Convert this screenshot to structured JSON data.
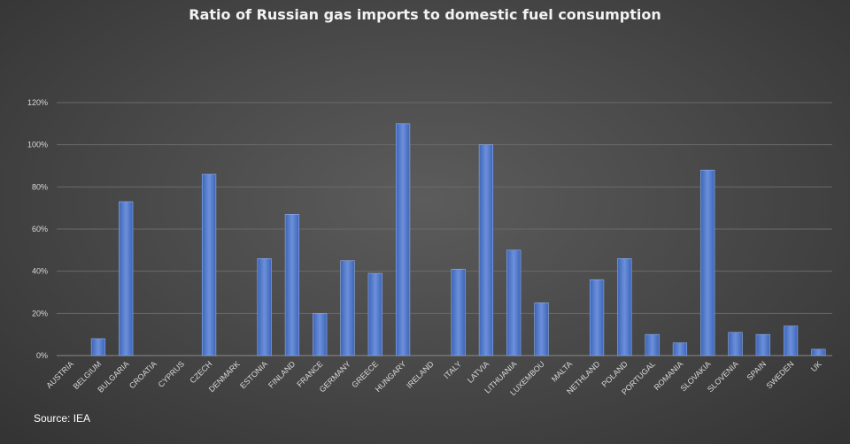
{
  "chart_data": {
    "type": "bar",
    "title": "Ratio of Russian gas imports to domestic fuel consumption",
    "source": "Source: IEA",
    "categories": [
      "AUSTRIA",
      "BELGIUM",
      "BULGARIA",
      "CROATIA",
      "CYPRUS",
      "CZECH",
      "DENMARK",
      "ESTONIA",
      "FINLAND",
      "FRANCE",
      "GERMANY",
      "GREECE",
      "HUNGARY",
      "IRELAND",
      "ITALY",
      "LATVIA",
      "LITHUANIA",
      "LUXEMBOU",
      "MALTA",
      "NETHLAND",
      "POLAND",
      "PORTUGAL",
      "ROMANIA",
      "SLOVAKIA",
      "SLOVENIA",
      "SPAIN",
      "SWEDEN",
      "UK"
    ],
    "values": [
      0,
      8,
      73,
      0,
      0,
      86,
      0,
      46,
      67,
      20,
      45,
      39,
      110,
      0,
      41,
      100,
      50,
      25,
      0,
      36,
      46,
      10,
      6,
      88,
      11,
      10,
      14,
      3
    ],
    "y_ticks": [
      "0%",
      "20%",
      "40%",
      "60%",
      "80%",
      "100%",
      "120%"
    ],
    "ylim": [
      0,
      120
    ],
    "grid": true,
    "colors": {
      "bar": "#4a72c8",
      "bar_light": "#6f93dc",
      "grid": "#6a6a6a",
      "axis": "#8a8a8a"
    }
  }
}
